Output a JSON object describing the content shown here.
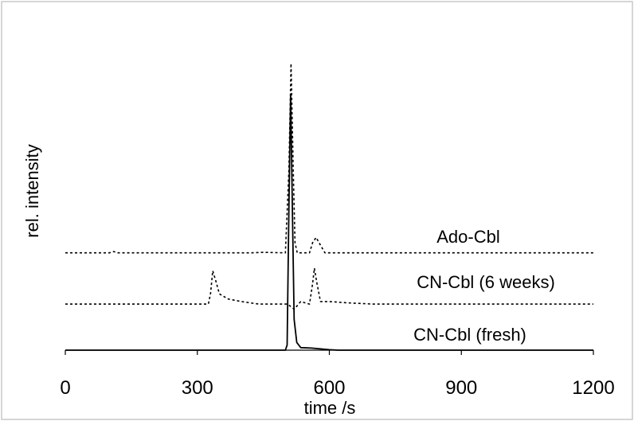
{
  "chart_data": {
    "type": "line",
    "title": "",
    "xlabel": "time /s",
    "ylabel": "rel. intensity",
    "xlim": [
      0,
      1200
    ],
    "x_ticks": [
      0,
      300,
      600,
      900,
      1200
    ],
    "ylim": [
      0,
      1.15
    ],
    "grid": false,
    "legend": "none",
    "annotations": [
      "Ado-Cbl",
      "CN-Cbl (6 weeks)",
      "CN-Cbl (fresh)"
    ],
    "series": [
      {
        "style": "dotted",
        "baseline": 0.38,
        "points": [
          [
            0,
            0.38
          ],
          [
            100,
            0.38
          ],
          [
            110,
            0.385
          ],
          [
            120,
            0.38
          ],
          [
            420,
            0.38
          ],
          [
            450,
            0.382
          ],
          [
            500,
            0.38
          ],
          [
            508,
            0.7
          ],
          [
            513,
            1.12
          ],
          [
            518,
            0.7
          ],
          [
            522,
            0.42
          ],
          [
            527,
            0.38
          ],
          [
            555,
            0.38
          ],
          [
            562,
            0.42
          ],
          [
            570,
            0.44
          ],
          [
            580,
            0.41
          ],
          [
            590,
            0.38
          ],
          [
            1200,
            0.38
          ]
        ]
      },
      {
        "style": "dotted",
        "baseline": 0.18,
        "points": [
          [
            0,
            0.18
          ],
          [
            325,
            0.18
          ],
          [
            330,
            0.22
          ],
          [
            335,
            0.31
          ],
          [
            342,
            0.27
          ],
          [
            350,
            0.22
          ],
          [
            370,
            0.2
          ],
          [
            400,
            0.19
          ],
          [
            440,
            0.18
          ],
          [
            495,
            0.18
          ],
          [
            505,
            0.18
          ],
          [
            520,
            0.16
          ],
          [
            535,
            0.19
          ],
          [
            555,
            0.18
          ],
          [
            562,
            0.26
          ],
          [
            566,
            0.32
          ],
          [
            572,
            0.26
          ],
          [
            580,
            0.19
          ],
          [
            600,
            0.19
          ],
          [
            640,
            0.185
          ],
          [
            700,
            0.18
          ],
          [
            1200,
            0.18
          ]
        ]
      },
      {
        "style": "solid",
        "baseline": 0,
        "points": [
          [
            0,
            0
          ],
          [
            500,
            0
          ],
          [
            504,
            0.02
          ],
          [
            508,
            0.55
          ],
          [
            512,
            1.0
          ],
          [
            516,
            0.55
          ],
          [
            520,
            0.12
          ],
          [
            526,
            0.03
          ],
          [
            535,
            0.01
          ],
          [
            560,
            0.008
          ],
          [
            600,
            0.002
          ],
          [
            620,
            0
          ],
          [
            1200,
            0
          ]
        ]
      }
    ],
    "colors": {
      "line": "#000000",
      "border": "#c8c8c8",
      "background": "#ffffff"
    }
  }
}
